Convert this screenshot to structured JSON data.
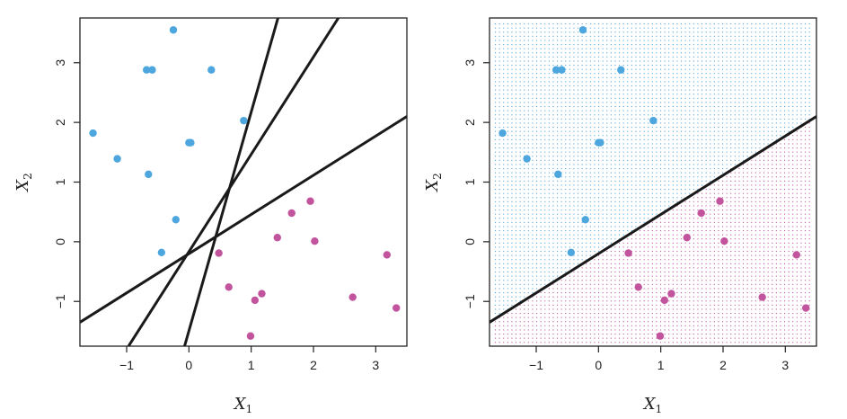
{
  "chart_data": [
    {
      "type": "scatter",
      "xlabel": "X",
      "xlabel_sub": "1",
      "ylabel": "X",
      "ylabel_sub": "2",
      "xlim": [
        -1.75,
        3.5
      ],
      "ylim": [
        -1.75,
        3.75
      ],
      "xticks": [
        -1,
        0,
        1,
        2,
        3
      ],
      "yticks": [
        -1,
        0,
        1,
        2,
        3
      ],
      "xtick_labels": [
        "−1",
        "0",
        "1",
        "2",
        "3"
      ],
      "ytick_labels": [
        "−1",
        "0",
        "1",
        "2",
        "3"
      ],
      "grid": false,
      "series": [
        {
          "color": "#4DA6DE",
          "points": [
            [
              -0.25,
              3.55
            ],
            [
              -0.68,
              2.88
            ],
            [
              -0.59,
              2.88
            ],
            [
              0.36,
              2.88
            ],
            [
              0.88,
              2.03
            ],
            [
              -1.54,
              1.82
            ],
            [
              0.0,
              1.66
            ],
            [
              0.03,
              1.66
            ],
            [
              -1.15,
              1.39
            ],
            [
              -0.65,
              1.13
            ],
            [
              -0.21,
              0.37
            ],
            [
              -0.44,
              -0.18
            ]
          ]
        },
        {
          "color": "#C2549E",
          "points": [
            [
              1.95,
              0.68
            ],
            [
              1.65,
              0.48
            ],
            [
              1.42,
              0.07
            ],
            [
              2.02,
              0.01
            ],
            [
              0.48,
              -0.19
            ],
            [
              3.18,
              -0.22
            ],
            [
              0.64,
              -0.76
            ],
            [
              1.17,
              -0.87
            ],
            [
              1.06,
              -0.98
            ],
            [
              2.63,
              -0.93
            ],
            [
              3.33,
              -1.11
            ],
            [
              0.99,
              -1.58
            ]
          ]
        }
      ],
      "lines": [
        {
          "color": "#1a1a1a",
          "points": [
            [
              -1.75,
              -1.35
            ],
            [
              3.5,
              2.1
            ]
          ]
        },
        {
          "color": "#1a1a1a",
          "points": [
            [
              -0.97,
              -1.75
            ],
            [
              2.4,
              3.75
            ]
          ]
        },
        {
          "color": "#1a1a1a",
          "points": [
            [
              -0.07,
              -1.75
            ],
            [
              1.43,
              3.75
            ]
          ]
        }
      ]
    },
    {
      "type": "scatter",
      "xlabel": "X",
      "xlabel_sub": "1",
      "ylabel": "X",
      "ylabel_sub": "2",
      "xlim": [
        -1.75,
        3.5
      ],
      "ylim": [
        -1.75,
        3.75
      ],
      "xticks": [
        -1,
        0,
        1,
        2,
        3
      ],
      "yticks": [
        -1,
        0,
        1,
        2,
        3
      ],
      "xtick_labels": [
        "−1",
        "0",
        "1",
        "2",
        "3"
      ],
      "ytick_labels": [
        "−1",
        "0",
        "1",
        "2",
        "3"
      ],
      "grid": false,
      "shaded_regions": [
        {
          "color": "#4DA6DE",
          "side": "above separating line"
        },
        {
          "color": "#C2549E",
          "side": "below separating line"
        }
      ],
      "series": [
        {
          "color": "#4DA6DE",
          "points": [
            [
              -0.25,
              3.55
            ],
            [
              -0.68,
              2.88
            ],
            [
              -0.59,
              2.88
            ],
            [
              0.36,
              2.88
            ],
            [
              0.88,
              2.03
            ],
            [
              -1.54,
              1.82
            ],
            [
              0.0,
              1.66
            ],
            [
              0.03,
              1.66
            ],
            [
              -1.15,
              1.39
            ],
            [
              -0.65,
              1.13
            ],
            [
              -0.21,
              0.37
            ],
            [
              -0.44,
              -0.18
            ]
          ]
        },
        {
          "color": "#C2549E",
          "points": [
            [
              1.95,
              0.68
            ],
            [
              1.65,
              0.48
            ],
            [
              1.42,
              0.07
            ],
            [
              2.02,
              0.01
            ],
            [
              0.48,
              -0.19
            ],
            [
              3.18,
              -0.22
            ],
            [
              0.64,
              -0.76
            ],
            [
              1.17,
              -0.87
            ],
            [
              1.06,
              -0.98
            ],
            [
              2.63,
              -0.93
            ],
            [
              3.33,
              -1.11
            ],
            [
              0.99,
              -1.58
            ]
          ]
        }
      ],
      "lines": [
        {
          "color": "#1a1a1a",
          "points": [
            [
              -1.75,
              -1.35
            ],
            [
              3.5,
              2.1
            ]
          ]
        }
      ]
    }
  ]
}
